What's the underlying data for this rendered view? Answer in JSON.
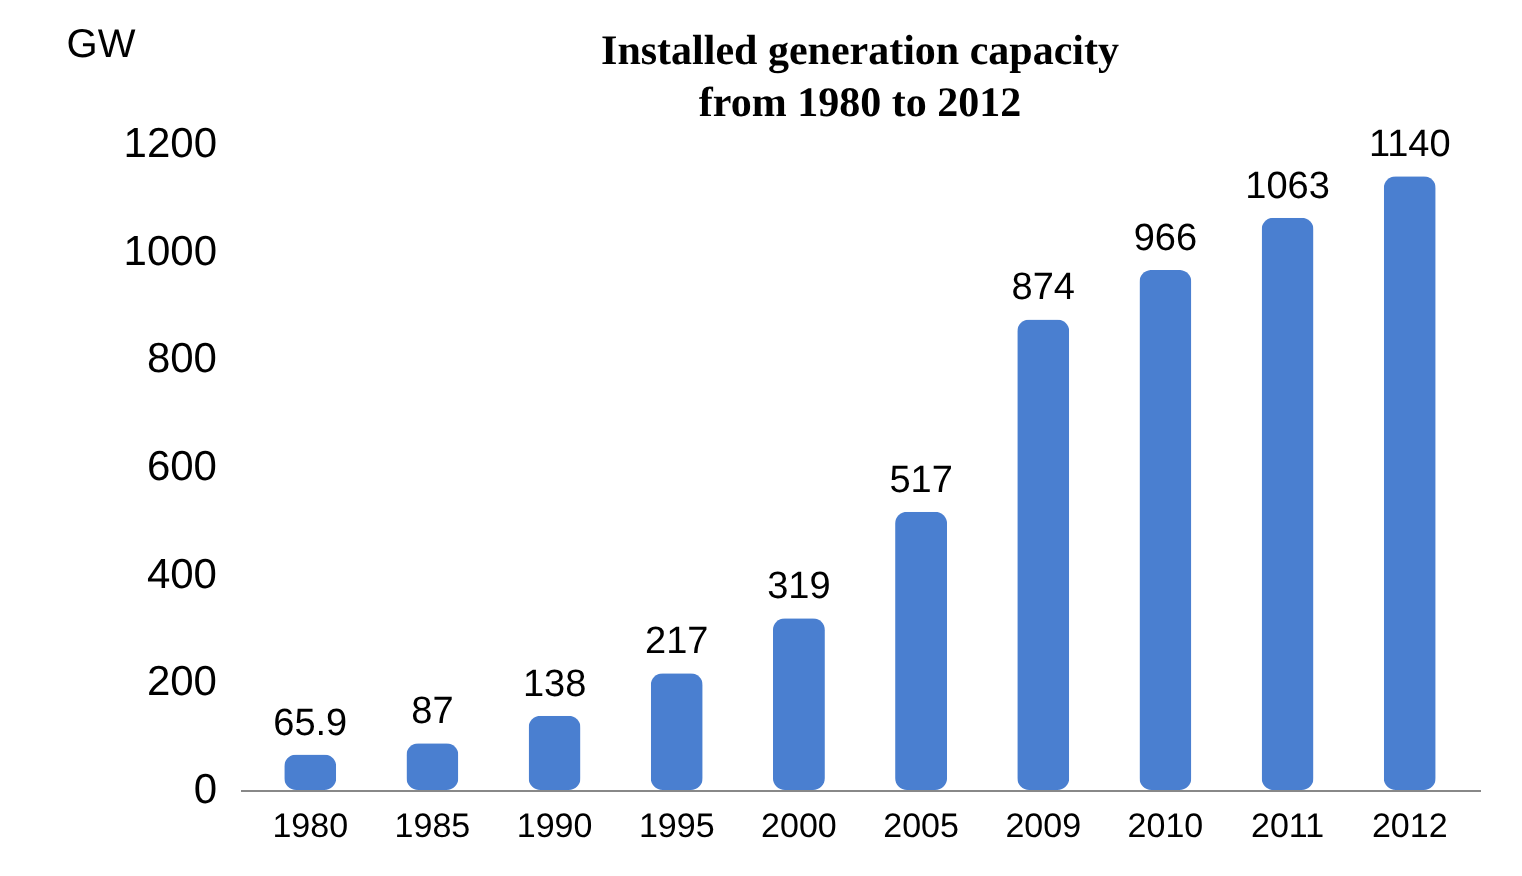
{
  "chart_data": {
    "type": "bar",
    "title": [
      "Installed generation capacity",
      "from 1980 to 2012"
    ],
    "ylabel": "GW",
    "categories": [
      "1980",
      "1985",
      "1990",
      "1995",
      "2000",
      "2005",
      "2009",
      "2010",
      "2011",
      "2012"
    ],
    "values": [
      65.9,
      87,
      138,
      217,
      319,
      517,
      874,
      966,
      1063,
      1140
    ],
    "color": "#4a7fd0",
    "ylim": [
      0,
      1200
    ],
    "yticks": [
      0,
      200,
      400,
      600,
      800,
      1000,
      1200
    ],
    "grid": false,
    "data_labels": true
  }
}
